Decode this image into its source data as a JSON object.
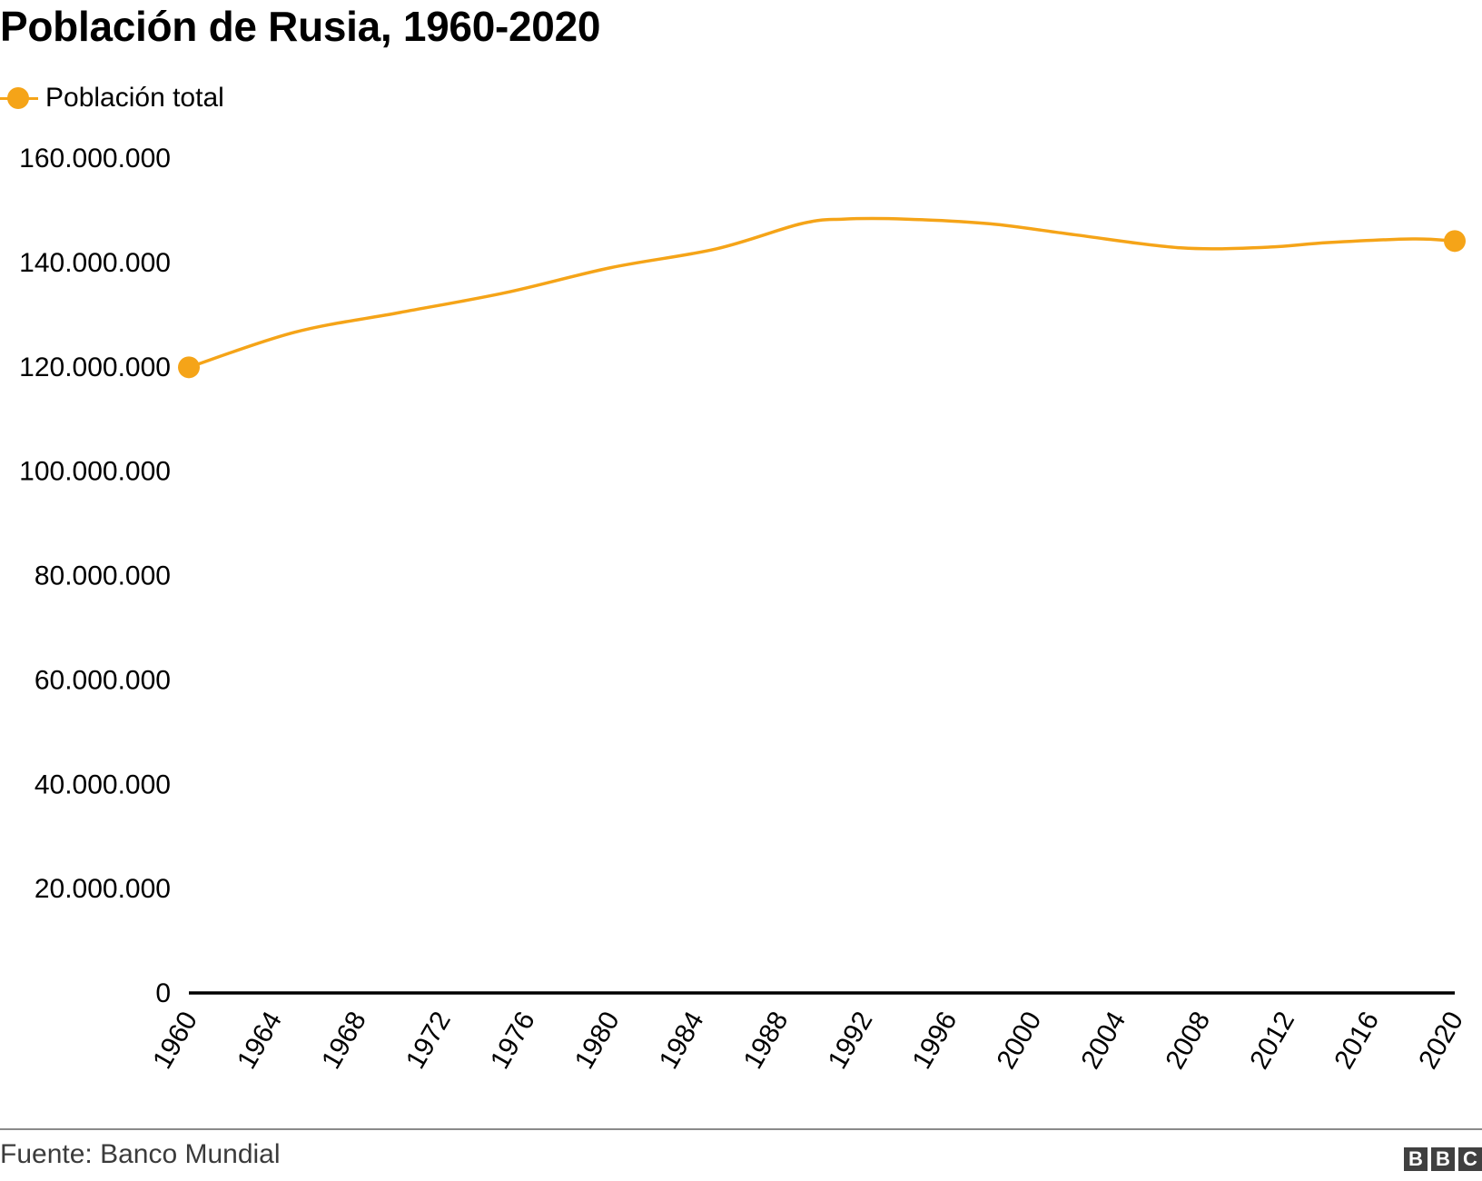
{
  "chart_data": {
    "type": "line",
    "title": "Población de Rusia, 1960-2020",
    "legend": {
      "position": "top-left"
    },
    "series": [
      {
        "name": "Población total",
        "color": "#f5a418",
        "x": [
          1960,
          1965,
          1970,
          1975,
          1980,
          1985,
          1989,
          1991,
          1994,
          1998,
          2002,
          2007,
          2011,
          2014,
          2018,
          2020
        ],
        "values": [
          119900000,
          126600000,
          130400000,
          134200000,
          139000000,
          142600000,
          147400000,
          148300000,
          148300000,
          147400000,
          145300000,
          142800000,
          142900000,
          143800000,
          144500000,
          144100000
        ]
      }
    ],
    "xlim": [
      1960,
      2020
    ],
    "x_ticks": [
      "1960",
      "1964",
      "1968",
      "1972",
      "1976",
      "1980",
      "1984",
      "1988",
      "1992",
      "1996",
      "2000",
      "2004",
      "2008",
      "2012",
      "2016",
      "2020"
    ],
    "ylim": [
      0,
      160000000
    ],
    "y_ticks": [
      "0",
      "20.000.000",
      "40.000.000",
      "60.000.000",
      "80.000.000",
      "100.000.000",
      "120.000.000",
      "140.000.000",
      "160.000.000"
    ],
    "y_tick_values": [
      0,
      20000000,
      40000000,
      60000000,
      80000000,
      100000000,
      120000000,
      140000000,
      160000000
    ],
    "grid": false,
    "endpoint_markers": true,
    "xlabel": "",
    "ylabel": ""
  },
  "source": "Fuente: Banco Mundial",
  "logo": [
    "B",
    "B",
    "C"
  ]
}
